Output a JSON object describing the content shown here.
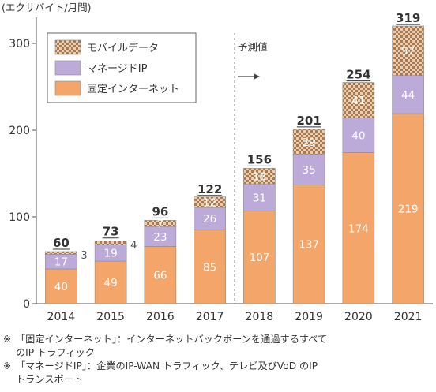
{
  "chart_data": {
    "type": "bar",
    "stacked": true,
    "unit_label": "(エクサバイト/月間)",
    "categories": [
      "2014",
      "2015",
      "2016",
      "2017",
      "2018",
      "2019",
      "2020",
      "2021"
    ],
    "series": [
      {
        "name": "固定インターネット",
        "values": [
          40,
          49,
          66,
          85,
          107,
          137,
          174,
          219
        ],
        "color": "#F4A66A"
      },
      {
        "name": "マネージドIP",
        "values": [
          17,
          19,
          23,
          26,
          31,
          35,
          40,
          44
        ],
        "color": "#BCAAD8"
      },
      {
        "name": "モバイルデータ",
        "values": [
          3,
          4,
          7,
          12,
          18,
          29,
          41,
          57
        ],
        "color": "#D4A880"
      }
    ],
    "totals": [
      60,
      73,
      96,
      122,
      156,
      201,
      254,
      319
    ],
    "ylim": [
      0,
      330
    ],
    "yticks": [
      0,
      100,
      200,
      300
    ],
    "grid": false,
    "legend": "top-left",
    "forecast_label": "予測値",
    "forecast_start": "2018"
  },
  "notes": [
    {
      "mark": "※",
      "lines": [
        "「固定インターネット」：インターネットバックボーンを通過するすべて",
        "のIP トラフィック"
      ]
    },
    {
      "mark": "※",
      "lines": [
        "「マネージドIP」：企業のIP-WAN トラフィック、テレビ及びVoD のIP",
        "トランスポート"
      ]
    }
  ]
}
